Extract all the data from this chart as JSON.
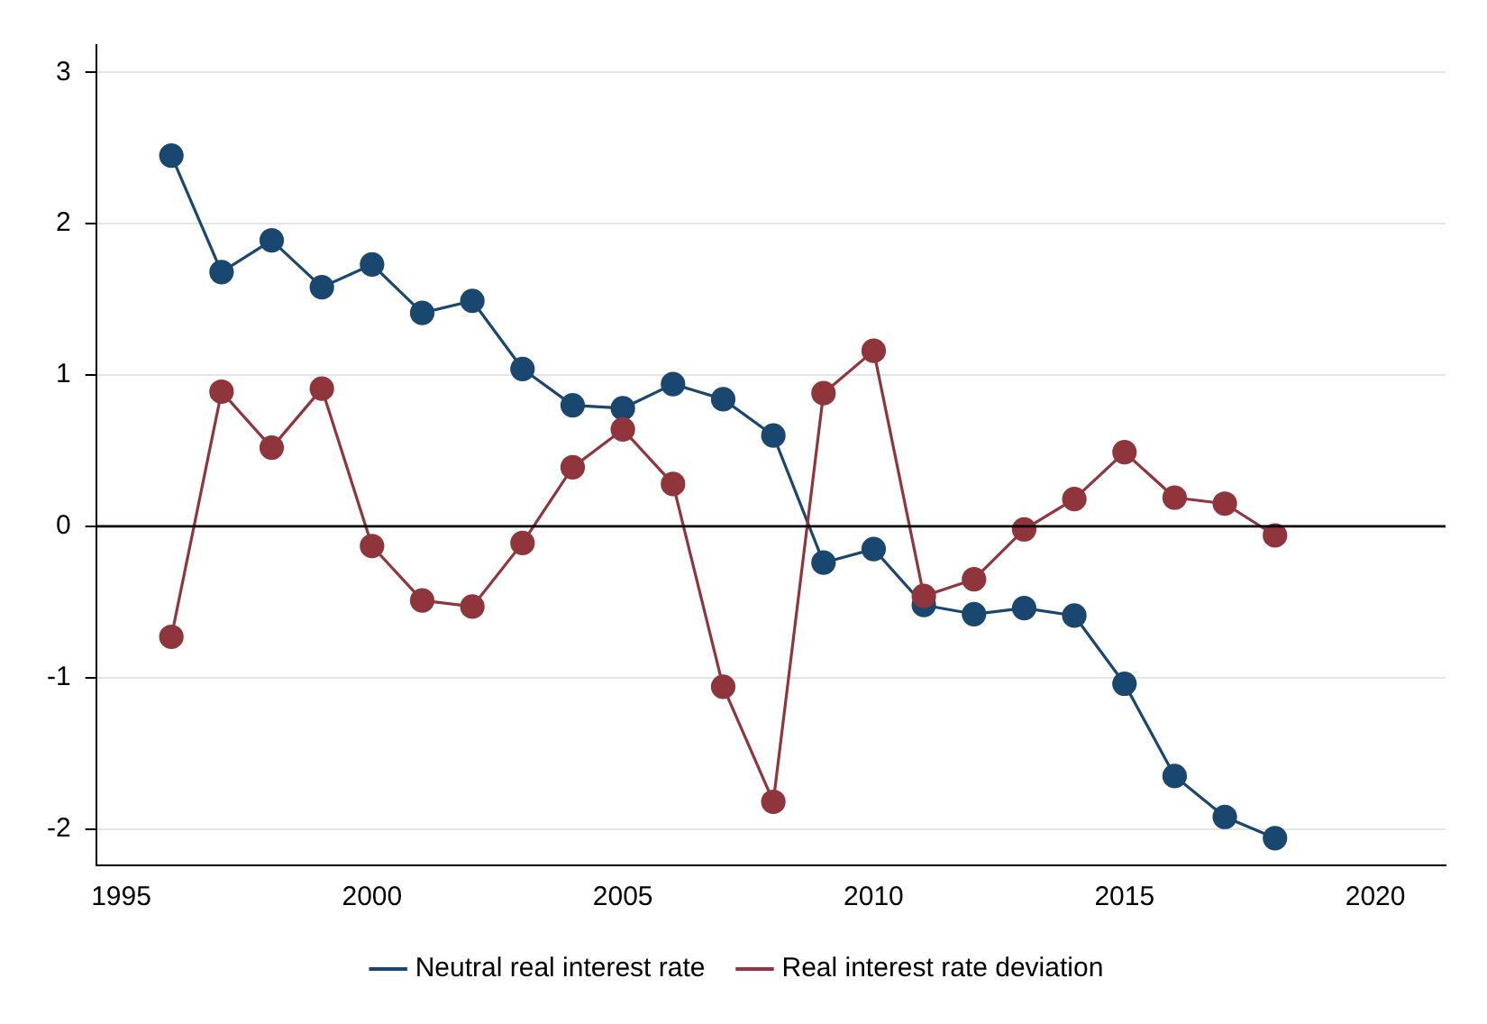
{
  "chart_data": {
    "type": "line",
    "x": [
      1996,
      1997,
      1998,
      1999,
      2000,
      2001,
      2002,
      2003,
      2004,
      2005,
      2006,
      2007,
      2008,
      2009,
      2010,
      2011,
      2012,
      2013,
      2014,
      2015,
      2016,
      2017,
      2018
    ],
    "series": [
      {
        "name": "Neutral real interest rate",
        "color": "#1a476f",
        "values": [
          2.45,
          1.68,
          1.89,
          1.58,
          1.73,
          1.41,
          1.49,
          1.04,
          0.8,
          0.78,
          0.94,
          0.84,
          0.6,
          -0.24,
          -0.15,
          -0.52,
          -0.58,
          -0.54,
          -0.59,
          -1.04,
          -1.65,
          -1.92,
          -2.06
        ]
      },
      {
        "name": "Real interest rate deviation",
        "color": "#90353b",
        "values": [
          -0.73,
          0.89,
          0.52,
          0.91,
          -0.13,
          -0.49,
          -0.53,
          -0.11,
          0.39,
          0.64,
          0.28,
          -1.06,
          -1.82,
          0.88,
          1.16,
          -0.46,
          -0.35,
          -0.02,
          0.18,
          0.49,
          0.19,
          0.15,
          -0.06
        ]
      }
    ],
    "xlim": [
      1994.5,
      2021.4
    ],
    "xticks": [
      1995,
      2000,
      2005,
      2010,
      2015,
      2020
    ],
    "ylim": [
      -2.24,
      3.18
    ],
    "yticks": [
      -2,
      -1,
      0,
      1,
      2,
      3
    ],
    "grid": "y",
    "legend": "bottom",
    "marker": "circle",
    "line_style": "solid",
    "ref_lines": [
      {
        "axis": "y",
        "value": 0,
        "color": "#000000"
      }
    ]
  }
}
